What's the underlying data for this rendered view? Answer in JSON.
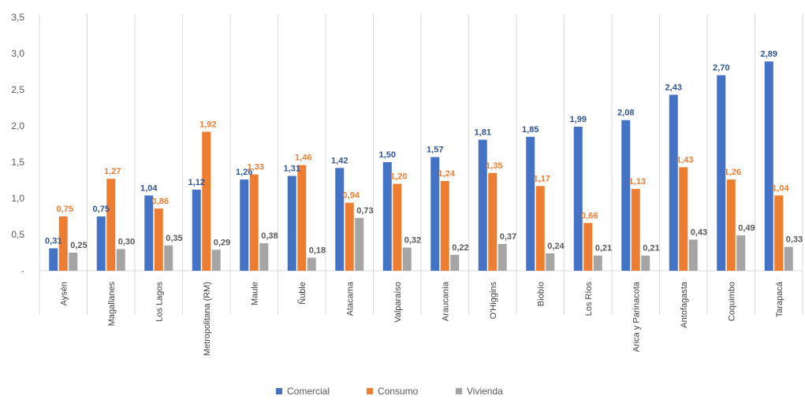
{
  "chart_data": {
    "type": "bar",
    "title": "",
    "xlabel": "",
    "ylabel": "",
    "ylim": [
      0,
      3.5
    ],
    "yticks": [
      "-",
      "0,5",
      "1,0",
      "1,5",
      "2,0",
      "2,5",
      "3,0",
      "3,5"
    ],
    "grid": "vertical-separators",
    "legend": "bottom",
    "categories": [
      "Aysén",
      "Magallanes",
      "Los Lagos",
      "Metropolitana (RM)",
      "Maule",
      "Ñuble",
      "Atacama",
      "Valparaíso",
      "Araucanía",
      "O'Higgins",
      "Biobío",
      "Los Ríos",
      "Arica y Parinacota",
      "Antofagasta",
      "Coquimbo",
      "Tarapacá"
    ],
    "series": [
      {
        "name": "Comercial",
        "color": "#4472C4",
        "label_color": "#2F5597",
        "values": [
          0.31,
          0.75,
          1.04,
          1.12,
          1.26,
          1.31,
          1.42,
          1.5,
          1.57,
          1.81,
          1.85,
          1.99,
          2.08,
          2.43,
          2.7,
          2.89
        ],
        "labels": [
          "0,31",
          "0,75",
          "1,04",
          "1,12",
          "1,26",
          "1,31",
          "1,42",
          "1,50",
          "1,57",
          "1,81",
          "1,85",
          "1,99",
          "2,08",
          "2,43",
          "2,70",
          "2,89"
        ]
      },
      {
        "name": "Consumo",
        "color": "#ED7D31",
        "label_color": "#ED7D31",
        "values": [
          0.75,
          1.27,
          0.86,
          1.92,
          1.33,
          1.46,
          0.94,
          1.2,
          1.24,
          1.35,
          1.17,
          0.66,
          1.13,
          1.43,
          1.26,
          1.04
        ],
        "labels": [
          "0,75",
          "1,27",
          "0,86",
          "1,92",
          "1,33",
          "1,46",
          "0,94",
          "1,20",
          "1,24",
          "1,35",
          "1,17",
          "0,66",
          "1,13",
          "1,43",
          "1,26",
          "1,04"
        ]
      },
      {
        "name": "Vivienda",
        "color": "#A5A5A5",
        "label_color": "#595959",
        "values": [
          0.25,
          0.3,
          0.35,
          0.29,
          0.38,
          0.18,
          0.73,
          0.32,
          0.22,
          0.37,
          0.24,
          0.21,
          0.21,
          0.43,
          0.49,
          0.33
        ],
        "labels": [
          "0,25",
          "0,30",
          "0,35",
          "0,29",
          "0,38",
          "0,18",
          "0,73",
          "0,32",
          "0,22",
          "0,37",
          "0,24",
          "0,21",
          "0,21",
          "0,43",
          "0,49",
          "0,33"
        ]
      }
    ]
  }
}
